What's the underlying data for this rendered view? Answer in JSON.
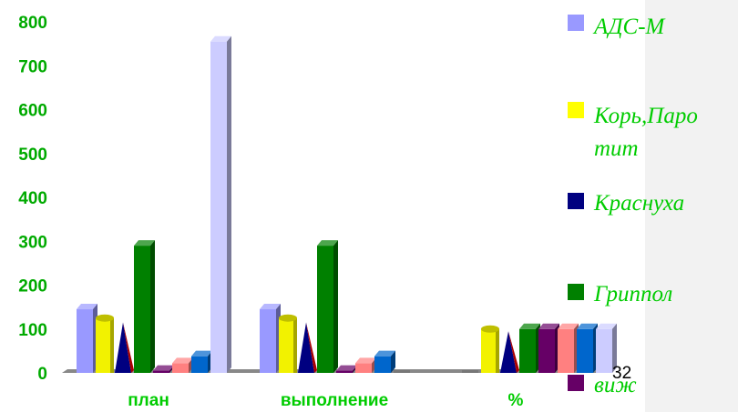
{
  "chart_data": {
    "type": "bar",
    "title": "",
    "xlabel": "",
    "ylabel": "",
    "ylim": [
      0,
      800
    ],
    "yticks": [
      0,
      100,
      200,
      300,
      400,
      500,
      600,
      700,
      800
    ],
    "categories": [
      "план",
      "выполнение",
      "%"
    ],
    "grid": false,
    "legend_position": "right",
    "series": [
      {
        "name": "АДС-М",
        "color": "#9999ff",
        "shape": "box",
        "values": [
          145,
          145,
          0
        ]
      },
      {
        "name": "Корь,Паротит",
        "color": "#ffff00",
        "shape": "cylinder",
        "values": [
          125,
          125,
          100
        ]
      },
      {
        "name": "Краснуха",
        "color": "#000080",
        "shape": "pyramid",
        "values": [
          115,
          115,
          95
        ]
      },
      {
        "name": "Гриппол",
        "color": "#008000",
        "shape": "box",
        "values": [
          290,
          290,
          100
        ]
      },
      {
        "name": "виж",
        "color": "#660066",
        "shape": "box",
        "values": [
          5,
          5,
          100
        ]
      },
      {
        "name": "",
        "color": "#ff8080",
        "shape": "box",
        "values": [
          22,
          22,
          100
        ]
      },
      {
        "name": "",
        "color": "#0066cc",
        "shape": "box",
        "values": [
          38,
          38,
          100
        ]
      },
      {
        "name": "",
        "color": "#ccccff",
        "shape": "box",
        "values": [
          755,
          0,
          100
        ]
      }
    ],
    "legend_shown": [
      {
        "label": "АДС-М",
        "color": "#9999ff"
      },
      {
        "label": "Корь,Паро тит",
        "color": "#ffff00"
      },
      {
        "label": "Краснуха",
        "color": "#000080"
      },
      {
        "label": "Гриппол",
        "color": "#008000"
      },
      {
        "label": "виж",
        "color": "#660066"
      }
    ]
  },
  "slide_number": "32"
}
